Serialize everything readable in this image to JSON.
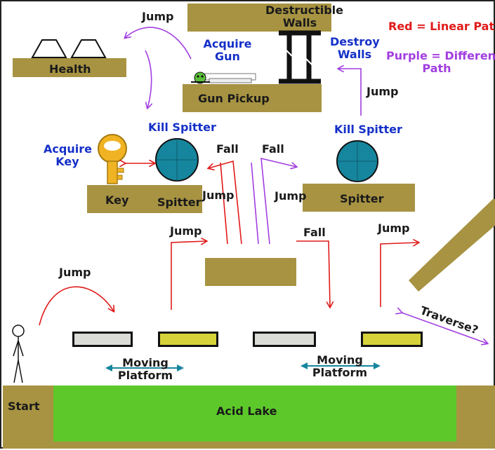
{
  "legend": {
    "red": "Red = Linear Path",
    "purple_line1": "Purple = Different",
    "purple_line2": "Path"
  },
  "areas": {
    "health": "Health",
    "gun_pickup": "Gun Pickup",
    "destructible_line1": "Destructible",
    "destructible_line2": "Walls",
    "key": "Key",
    "spitter_left": "Spitter",
    "spitter_right": "Spitter",
    "start": "Start",
    "acid_lake": "Acid Lake"
  },
  "actions": {
    "jump_top": "Jump",
    "acquire_gun_line1": "Acquire",
    "acquire_gun_line2": "Gun",
    "destroy_walls_line1": "Destroy",
    "destroy_walls_line2": "Walls",
    "jump_right_top": "Jump",
    "kill_spitter_left": "Kill Spitter",
    "kill_spitter_right": "Kill Spitter",
    "acquire_key_line1": "Acquire",
    "acquire_key_line2": "Key",
    "fall_left": "Fall",
    "fall_right": "Fall",
    "jump_mid_left": "Jump",
    "jump_mid_right": "Jump",
    "jump_lower_left": "Jump",
    "fall_lower": "Fall",
    "jump_lower_right": "Jump",
    "jump_start": "Jump",
    "traverse": "Traverse?",
    "moving_platform_left_line1": "Moving",
    "moving_platform_left_line2": "Platform",
    "moving_platform_right_line1": "Moving",
    "moving_platform_right_line2": "Platform"
  },
  "colors": {
    "platform": "#a79342",
    "acid": "#5dc82a",
    "linear_path": "#e01a1a",
    "different_path": "#a23ee0",
    "spitter": "#16869e",
    "key": "#f0b323",
    "platform_grey": "#dcdcd6",
    "platform_yellow": "#d6d33a"
  }
}
